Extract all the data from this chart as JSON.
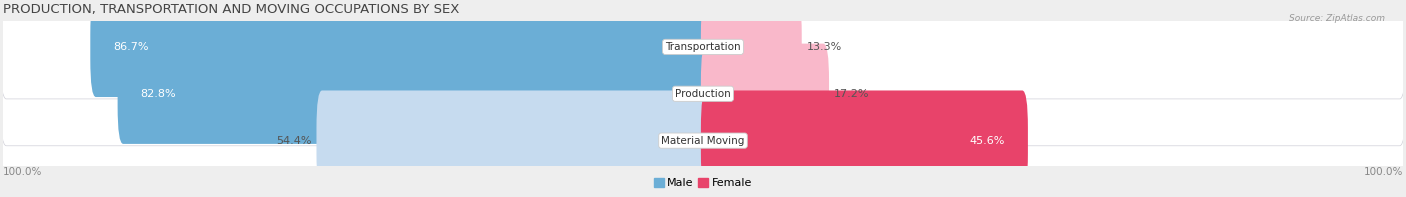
{
  "title": "PRODUCTION, TRANSPORTATION AND MOVING OCCUPATIONS BY SEX",
  "source": "Source: ZipAtlas.com",
  "categories": [
    "Transportation",
    "Production",
    "Material Moving"
  ],
  "male_pct": [
    86.7,
    82.8,
    54.4
  ],
  "female_pct": [
    13.3,
    17.2,
    45.6
  ],
  "male_colors": [
    "#6baed6",
    "#6baed6",
    "#c6dbef"
  ],
  "female_colors": [
    "#f9b8ca",
    "#f9b8ca",
    "#e8436a"
  ],
  "bar_height": 0.62,
  "background_color": "#eeeeee",
  "axis_label_left": "100.0%",
  "axis_label_right": "100.0%",
  "legend_labels": [
    "Male",
    "Female"
  ],
  "legend_male_color": "#6baed6",
  "legend_female_color": "#e8436a",
  "title_fontsize": 9.5,
  "label_fontsize": 8.0,
  "category_fontsize": 7.5
}
